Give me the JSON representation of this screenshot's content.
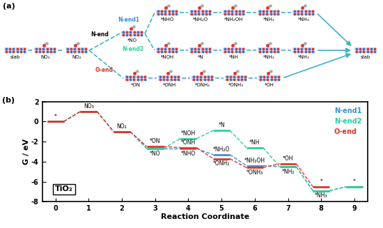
{
  "diagram": {
    "panel_label": "(a)",
    "start": "slab",
    "common": [
      "NO₃",
      "NO₂"
    ],
    "n_end": {
      "label": "N-end",
      "node": "*NO",
      "paths": [
        {
          "name": "N-end1",
          "color": "#3a8fd6",
          "nodes": [
            "*NHO",
            "*NH₂O",
            "*NH₂OH",
            "*NH₂",
            "*NH₃"
          ]
        },
        {
          "name": "N-end2",
          "color": "#2ccf9a",
          "nodes": [
            "*NOH",
            "*N",
            "*NH",
            "*NH₂",
            "*NH₃"
          ]
        }
      ]
    },
    "o_end": {
      "label": "O-end",
      "color": "#e0342b",
      "nodes": [
        "*ON",
        "*ONH",
        "*ONH₂",
        "*ONH₃",
        "*OH"
      ]
    },
    "end": "slab"
  },
  "chart_data": {
    "type": "line",
    "title": "(b)",
    "x_label": "Reaction Coordinate",
    "y_label": "G / eV",
    "x": [
      0,
      1,
      2,
      3,
      4,
      5,
      6,
      7,
      8,
      9
    ],
    "xlim": [
      -0.4,
      9.4
    ],
    "xticks": [
      0,
      1,
      2,
      3,
      4,
      5,
      6,
      7,
      8,
      9
    ],
    "ylim": [
      -8,
      2
    ],
    "yticks": [
      -8,
      -6,
      -4,
      -2,
      0,
      2
    ],
    "legend": "upper right",
    "annotations": [
      "TiO₂"
    ],
    "series": [
      {
        "name": "N-end1",
        "color": "#3a8fd6",
        "line_style": "dashed",
        "values": [
          0,
          1.0,
          -1.0,
          -2.7,
          -2.7,
          -3.3,
          -4.4,
          -4.5,
          -6.9,
          -6.5
        ],
        "point_labels": [
          null,
          null,
          null,
          "*NO",
          "*NHO",
          "*NH₂O",
          "*NH₂OH",
          "*NH₂",
          "*NH₃",
          "*"
        ]
      },
      {
        "name": "N-end2",
        "color": "#2ccf9a",
        "line_style": "dashed",
        "values": [
          0,
          1.0,
          -1.0,
          -2.7,
          -1.7,
          -0.9,
          -2.6,
          -4.5,
          -6.9,
          -6.5
        ],
        "point_labels": [
          null,
          null,
          null,
          null,
          "*NOH",
          "*N",
          "*NH",
          null,
          null,
          null
        ]
      },
      {
        "name": "O-end",
        "color": "#e0342b",
        "line_style": "dashed",
        "values": [
          0,
          1.0,
          -1.0,
          -2.5,
          -2.6,
          -3.7,
          -4.6,
          -4.2,
          -6.5,
          null
        ],
        "point_labels": [
          "*",
          "NO₃",
          "NO₂",
          "*ON",
          "*ONH",
          "*ONH₂",
          "*ONH₃",
          "*OH",
          "*",
          null
        ]
      }
    ]
  }
}
